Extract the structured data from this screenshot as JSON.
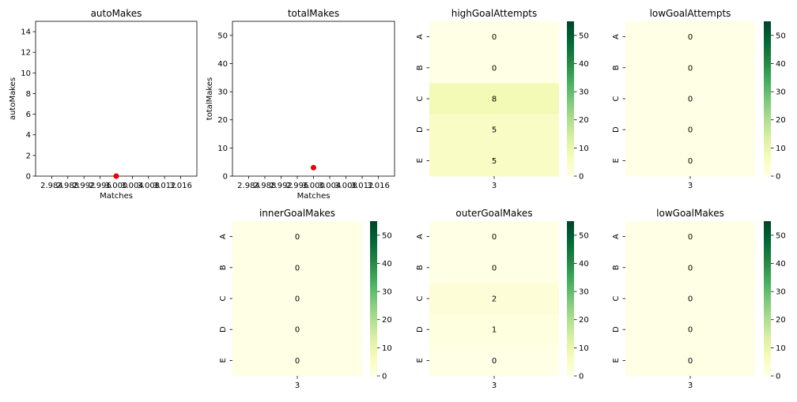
{
  "chart_data": [
    {
      "id": "autoMakes",
      "type": "scatter",
      "title": "autoMakes",
      "xlabel": "Matches",
      "ylabel": "autoMakes",
      "xlim": [
        2.98,
        3.02
      ],
      "ylim": [
        0,
        15
      ],
      "xticks": [
        "2.984",
        "2.988",
        "2.992",
        "2.996",
        "3.000",
        "3.004",
        "3.008",
        "3.012",
        "3.016"
      ],
      "yticks": [
        "0",
        "2",
        "4",
        "6",
        "8",
        "10",
        "12",
        "14"
      ],
      "points": [
        {
          "x": 3.0,
          "y": 0
        }
      ],
      "point_color": "#e8000b"
    },
    {
      "id": "totalMakes",
      "type": "scatter",
      "title": "totalMakes",
      "xlabel": "Matches",
      "ylabel": "totalMakes",
      "xlim": [
        2.98,
        3.02
      ],
      "ylim": [
        0,
        55
      ],
      "xticks": [
        "2.984",
        "2.988",
        "2.992",
        "2.996",
        "3.000",
        "3.004",
        "3.008",
        "3.012",
        "3.016"
      ],
      "yticks": [
        "0",
        "10",
        "20",
        "30",
        "40",
        "50"
      ],
      "points": [
        {
          "x": 3.0,
          "y": 3
        }
      ],
      "point_color": "#e8000b"
    },
    {
      "id": "highGoalAttempts",
      "type": "heatmap",
      "title": "highGoalAttempts",
      "rows": [
        "A",
        "B",
        "C",
        "D",
        "E"
      ],
      "columns": [
        "3"
      ],
      "values": [
        [
          0
        ],
        [
          0
        ],
        [
          8
        ],
        [
          5
        ],
        [
          5
        ]
      ],
      "vmin": 0,
      "vmax": 55,
      "colorbar_ticks": [
        "0",
        "10",
        "20",
        "30",
        "40",
        "50"
      ]
    },
    {
      "id": "lowGoalAttempts",
      "type": "heatmap",
      "title": "lowGoalAttempts",
      "rows": [
        "A",
        "B",
        "C",
        "D",
        "E"
      ],
      "columns": [
        "3"
      ],
      "values": [
        [
          0
        ],
        [
          0
        ],
        [
          0
        ],
        [
          0
        ],
        [
          0
        ]
      ],
      "vmin": 0,
      "vmax": 55,
      "colorbar_ticks": [
        "0",
        "10",
        "20",
        "30",
        "40",
        "50"
      ]
    },
    {
      "id": "innerGoalMakes",
      "type": "heatmap",
      "title": "innerGoalMakes",
      "rows": [
        "A",
        "B",
        "C",
        "D",
        "E"
      ],
      "columns": [
        "3"
      ],
      "values": [
        [
          0
        ],
        [
          0
        ],
        [
          0
        ],
        [
          0
        ],
        [
          0
        ]
      ],
      "vmin": 0,
      "vmax": 55,
      "colorbar_ticks": [
        "0",
        "10",
        "20",
        "30",
        "40",
        "50"
      ]
    },
    {
      "id": "outerGoalMakes",
      "type": "heatmap",
      "title": "outerGoalMakes",
      "rows": [
        "A",
        "B",
        "C",
        "D",
        "E"
      ],
      "columns": [
        "3"
      ],
      "values": [
        [
          0
        ],
        [
          0
        ],
        [
          2
        ],
        [
          1
        ],
        [
          0
        ]
      ],
      "vmin": 0,
      "vmax": 55,
      "colorbar_ticks": [
        "0",
        "10",
        "20",
        "30",
        "40",
        "50"
      ]
    },
    {
      "id": "lowGoalMakes",
      "type": "heatmap",
      "title": "lowGoalMakes",
      "rows": [
        "A",
        "B",
        "C",
        "D",
        "E"
      ],
      "columns": [
        "3"
      ],
      "values": [
        [
          0
        ],
        [
          0
        ],
        [
          0
        ],
        [
          0
        ],
        [
          0
        ]
      ],
      "vmin": 0,
      "vmax": 55,
      "colorbar_ticks": [
        "0",
        "10",
        "20",
        "30",
        "40",
        "50"
      ]
    }
  ]
}
